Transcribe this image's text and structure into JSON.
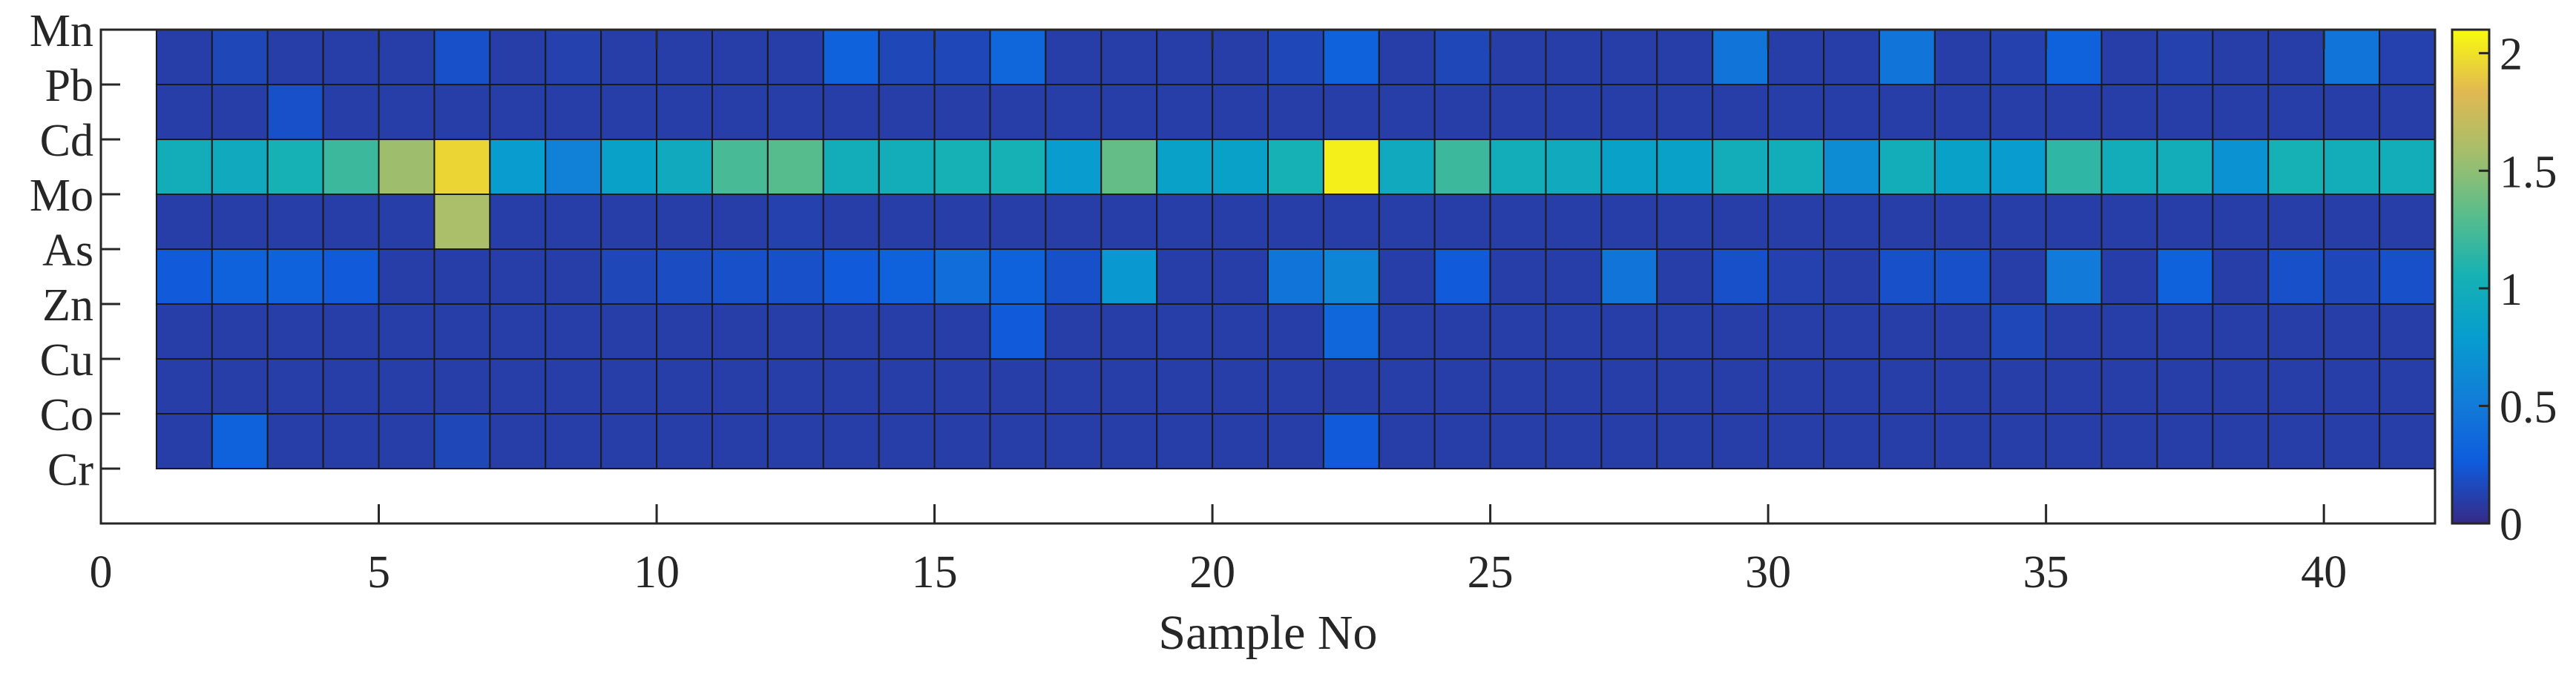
{
  "chart_data": {
    "type": "heatmap",
    "title": "",
    "xlabel": "Sample No",
    "ylabel": "",
    "xlim": [
      0,
      42
    ],
    "x_ticks": [
      0,
      5,
      10,
      15,
      20,
      25,
      30,
      35,
      40
    ],
    "x_tick_labels": [
      "0",
      "5",
      "10",
      "15",
      "20",
      "25",
      "30",
      "35",
      "40"
    ],
    "rows": [
      "Mn",
      "Pb",
      "Cd",
      "Mo",
      "As",
      "Zn",
      "Cu",
      "Co",
      "Cr"
    ],
    "columns": [
      1,
      2,
      3,
      4,
      5,
      6,
      7,
      8,
      9,
      10,
      11,
      12,
      13,
      14,
      15,
      16,
      17,
      18,
      19,
      20,
      21,
      22,
      23,
      24,
      25,
      26,
      27,
      28,
      29,
      30,
      31,
      32,
      33,
      34,
      35,
      36,
      37,
      38,
      39,
      40,
      41
    ],
    "colorbar": {
      "range": [
        0,
        2.1
      ],
      "ticks": [
        0,
        0.5,
        1,
        1.5,
        2
      ],
      "tick_labels": [
        "0",
        "0.5",
        "1",
        "1.5",
        "2"
      ],
      "colormap": "parula"
    },
    "values": [
      [
        0.1,
        0.15,
        0.1,
        0.1,
        0.1,
        0.2,
        0.1,
        0.12,
        0.1,
        0.1,
        0.1,
        0.1,
        0.3,
        0.15,
        0.15,
        0.35,
        0.1,
        0.1,
        0.1,
        0.1,
        0.15,
        0.3,
        0.1,
        0.15,
        0.1,
        0.1,
        0.1,
        0.1,
        0.45,
        0.1,
        0.1,
        0.45,
        0.1,
        0.12,
        0.3,
        0.1,
        0.12,
        0.1,
        0.1,
        0.45,
        0.12
      ],
      [
        0.1,
        0.1,
        0.2,
        0.1,
        0.1,
        0.1,
        0.1,
        0.1,
        0.1,
        0.1,
        0.1,
        0.1,
        0.1,
        0.1,
        0.1,
        0.1,
        0.1,
        0.1,
        0.1,
        0.1,
        0.1,
        0.1,
        0.1,
        0.1,
        0.1,
        0.1,
        0.1,
        0.1,
        0.1,
        0.1,
        0.1,
        0.1,
        0.1,
        0.1,
        0.1,
        0.1,
        0.1,
        0.1,
        0.1,
        0.1,
        0.1
      ],
      [
        1.0,
        0.95,
        1.05,
        1.2,
        1.55,
        1.95,
        0.8,
        0.55,
        0.85,
        0.95,
        1.25,
        1.3,
        1.0,
        1.0,
        1.05,
        1.05,
        0.8,
        1.35,
        0.85,
        0.85,
        1.05,
        2.05,
        0.95,
        1.2,
        1.0,
        0.95,
        0.85,
        0.85,
        1.0,
        1.0,
        0.65,
        1.0,
        0.85,
        0.8,
        1.15,
        1.0,
        1.0,
        0.7,
        1.05,
        1.0,
        1.0
      ],
      [
        0.1,
        0.1,
        0.1,
        0.1,
        0.1,
        1.6,
        0.1,
        0.1,
        0.1,
        0.1,
        0.1,
        0.12,
        0.1,
        0.1,
        0.1,
        0.1,
        0.1,
        0.1,
        0.1,
        0.1,
        0.1,
        0.1,
        0.1,
        0.1,
        0.1,
        0.1,
        0.1,
        0.1,
        0.1,
        0.1,
        0.1,
        0.1,
        0.1,
        0.1,
        0.1,
        0.1,
        0.1,
        0.1,
        0.1,
        0.1,
        0.1
      ],
      [
        0.25,
        0.3,
        0.3,
        0.25,
        0.1,
        0.1,
        0.1,
        0.1,
        0.15,
        0.18,
        0.2,
        0.2,
        0.25,
        0.3,
        0.4,
        0.3,
        0.2,
        0.75,
        0.1,
        0.1,
        0.45,
        0.6,
        0.1,
        0.25,
        0.1,
        0.1,
        0.45,
        0.1,
        0.2,
        0.12,
        0.1,
        0.2,
        0.2,
        0.1,
        0.5,
        0.1,
        0.3,
        0.1,
        0.2,
        0.15,
        0.2
      ],
      [
        0.1,
        0.1,
        0.1,
        0.1,
        0.1,
        0.1,
        0.1,
        0.1,
        0.1,
        0.1,
        0.1,
        0.1,
        0.1,
        0.1,
        0.1,
        0.25,
        0.1,
        0.1,
        0.1,
        0.1,
        0.1,
        0.35,
        0.1,
        0.1,
        0.1,
        0.1,
        0.1,
        0.1,
        0.1,
        0.1,
        0.1,
        0.1,
        0.1,
        0.15,
        0.1,
        0.1,
        0.1,
        0.1,
        0.1,
        0.1,
        0.1
      ],
      [
        0.1,
        0.1,
        0.1,
        0.1,
        0.1,
        0.1,
        0.1,
        0.1,
        0.1,
        0.1,
        0.1,
        0.1,
        0.1,
        0.1,
        0.1,
        0.1,
        0.1,
        0.1,
        0.1,
        0.1,
        0.1,
        0.1,
        0.1,
        0.1,
        0.1,
        0.1,
        0.1,
        0.1,
        0.1,
        0.1,
        0.1,
        0.1,
        0.1,
        0.1,
        0.1,
        0.1,
        0.1,
        0.1,
        0.1,
        0.1,
        0.1
      ],
      [
        0.1,
        0.3,
        0.1,
        0.1,
        0.1,
        0.15,
        0.1,
        0.1,
        0.1,
        0.1,
        0.1,
        0.1,
        0.1,
        0.1,
        0.1,
        0.1,
        0.1,
        0.1,
        0.1,
        0.1,
        0.1,
        0.25,
        0.1,
        0.1,
        0.1,
        0.1,
        0.1,
        0.1,
        0.1,
        0.1,
        0.1,
        0.1,
        0.1,
        0.1,
        0.1,
        0.1,
        0.1,
        0.1,
        0.1,
        0.1,
        0.1
      ],
      [
        null,
        null,
        null,
        null,
        null,
        null,
        null,
        null,
        null,
        null,
        null,
        null,
        null,
        null,
        null,
        null,
        null,
        null,
        null,
        null,
        null,
        null,
        null,
        null,
        null,
        null,
        null,
        null,
        null,
        null,
        null,
        null,
        null,
        null,
        null,
        null,
        null,
        null,
        null,
        null,
        null
      ]
    ]
  }
}
